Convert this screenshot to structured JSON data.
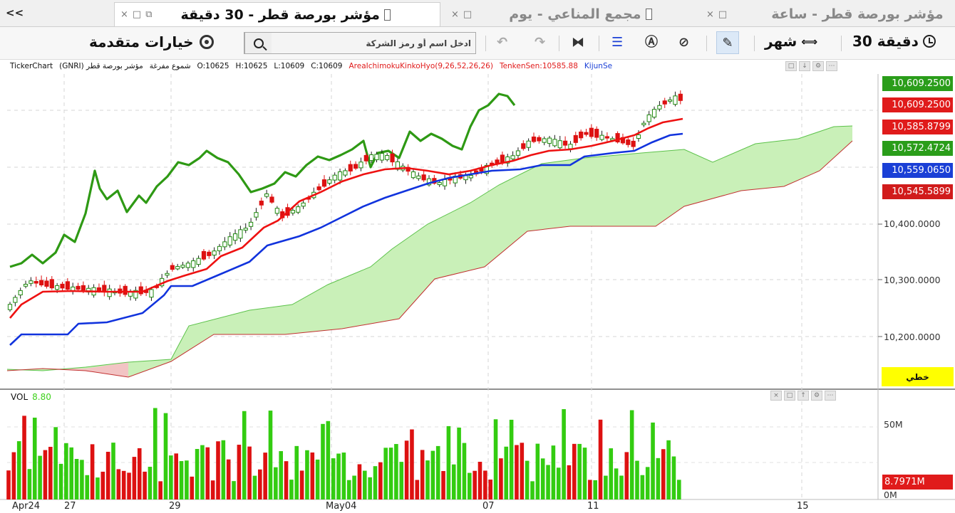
{
  "tabs": [
    {
      "title": "مؤشر بورصة قطر - ساعة",
      "active": false
    },
    {
      "title": "مجمع المناعي - يوم",
      "active": false
    },
    {
      "title": "مؤشر بورصة قطر - 30 دقيقة",
      "active": true
    }
  ],
  "tab_close_glyph": "×",
  "tab_restore_glyph": "□",
  "collapse_glyph": "<<",
  "toolbar": {
    "advanced_options_label": "خيارات متقدمة",
    "search_placeholder": "ادخل اسم أو رمز الشركة",
    "period_label": "شهر",
    "interval_label": "30 دقيقة",
    "icons": [
      "undo-icon",
      "redo-icon",
      "binoculars-icon",
      "indicator-list-icon",
      "alert-icon",
      "chart-style-icon",
      "drawing-tools-icon",
      "period-icon",
      "clock-icon"
    ]
  },
  "info_line": {
    "brand": "TickerChart",
    "symbol": "مؤشر بورصة قطر (GNRI)",
    "chart_type": "شموع مفرغة",
    "open": "O:10625",
    "high": "H:10625",
    "low": "L:10609",
    "close": "C:10609",
    "indicator": "AreaIchimokuKinkoHyo(9,26,52,26,26)",
    "tenken": "TenkenSen:10585.88",
    "kijun": "KijunSe"
  },
  "price_labels": [
    {
      "text": "10,609.2500",
      "color": "#2a9d1a"
    },
    {
      "text": "10,609.2500",
      "color": "#e01b1b"
    },
    {
      "text": "10,585.8799",
      "color": "#e01b1b"
    },
    {
      "text": "10,572.4724",
      "color": "#2a9d1a"
    },
    {
      "text": "10,559.0650",
      "color": "#1a3fd6"
    },
    {
      "text": "10,545.5899",
      "color": "#d11b1b"
    }
  ],
  "price_axis": [
    "10,400.0000",
    "10,300.0000",
    "10,200.0000"
  ],
  "scale_mode_label": "خطي",
  "volume": {
    "label": "VOL",
    "value": "8.80",
    "axis": [
      "50M",
      "0M"
    ],
    "last_badge": "8.7971M"
  },
  "date_axis": [
    "Apr24",
    "27",
    "29",
    "May04",
    "07",
    "11",
    "15"
  ],
  "colors": {
    "up": "#33cc11",
    "down": "#dd1111",
    "tenkan": "#ee1111",
    "kijun": "#1133dd",
    "chikou": "#2e9914",
    "cloud_bull": "#c9f0b8",
    "cloud_bear": "#f2c4c4"
  }
}
